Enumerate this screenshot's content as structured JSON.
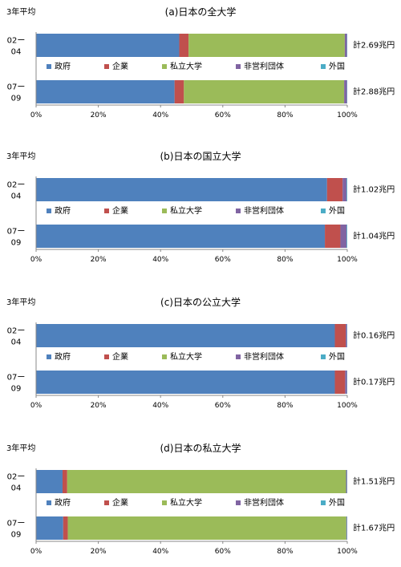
{
  "colors": {
    "政府": "#4f81bd",
    "企業": "#c0504d",
    "私立大学": "#9bbb59",
    "非営利団体": "#8064a2",
    "外国": "#4bacc6"
  },
  "chart_data": [
    {
      "type": "bar",
      "stacked": true,
      "orientation": "horizontal",
      "title": "(a)日本の全大学",
      "corner_label": "3年平均",
      "categories": [
        "02ー04",
        "07ー09"
      ],
      "xlim": [
        0,
        100
      ],
      "x_ticks": [
        "0%",
        "20%",
        "40%",
        "60%",
        "80%",
        "100%"
      ],
      "legend": [
        "政府",
        "企業",
        "私立大学",
        "非営利団体",
        "外国"
      ],
      "series": [
        {
          "name": "政府",
          "values": [
            46,
            44.5
          ]
        },
        {
          "name": "企業",
          "values": [
            3,
            3
          ]
        },
        {
          "name": "私立大学",
          "values": [
            50.2,
            51.5
          ]
        },
        {
          "name": "非営利団体",
          "values": [
            0.7,
            0.9
          ]
        },
        {
          "name": "外国",
          "values": [
            0.1,
            0.1
          ]
        }
      ],
      "totals": [
        "計2.69兆円",
        "計2.88兆円"
      ]
    },
    {
      "type": "bar",
      "stacked": true,
      "orientation": "horizontal",
      "title": "(b)日本の国立大学",
      "corner_label": "3年平均",
      "categories": [
        "02ー04",
        "07ー09"
      ],
      "xlim": [
        0,
        100
      ],
      "x_ticks": [
        "0%",
        "20%",
        "40%",
        "60%",
        "80%",
        "100%"
      ],
      "legend": [
        "政府",
        "企業",
        "私立大学",
        "非営利団体",
        "外国"
      ],
      "series": [
        {
          "name": "政府",
          "values": [
            93.5,
            92.8
          ]
        },
        {
          "name": "企業",
          "values": [
            5,
            5
          ]
        },
        {
          "name": "私立大学",
          "values": [
            0,
            0
          ]
        },
        {
          "name": "非営利団体",
          "values": [
            1.3,
            2
          ]
        },
        {
          "name": "外国",
          "values": [
            0.2,
            0.2
          ]
        }
      ],
      "totals": [
        "計1.02兆円",
        "計1.04兆円"
      ]
    },
    {
      "type": "bar",
      "stacked": true,
      "orientation": "horizontal",
      "title": "(c)日本の公立大学",
      "corner_label": "3年平均",
      "categories": [
        "02ー04",
        "07ー09"
      ],
      "xlim": [
        0,
        100
      ],
      "x_ticks": [
        "0%",
        "20%",
        "40%",
        "60%",
        "80%",
        "100%"
      ],
      "legend": [
        "政府",
        "企業",
        "私立大学",
        "非営利団体",
        "外国"
      ],
      "series": [
        {
          "name": "政府",
          "values": [
            96,
            96
          ]
        },
        {
          "name": "企業",
          "values": [
            3.5,
            3.3
          ]
        },
        {
          "name": "私立大学",
          "values": [
            0,
            0
          ]
        },
        {
          "name": "非営利団体",
          "values": [
            0.4,
            0.6
          ]
        },
        {
          "name": "外国",
          "values": [
            0.1,
            0.1
          ]
        }
      ],
      "totals": [
        "計0.16兆円",
        "計0.17兆円"
      ]
    },
    {
      "type": "bar",
      "stacked": true,
      "orientation": "horizontal",
      "title": "(d)日本の私立大学",
      "corner_label": "3年平均",
      "categories": [
        "02ー04",
        "07ー09"
      ],
      "xlim": [
        0,
        100
      ],
      "x_ticks": [
        "0%",
        "20%",
        "40%",
        "60%",
        "80%",
        "100%"
      ],
      "legend": [
        "政府",
        "企業",
        "私立大学",
        "非営利団体",
        "外国"
      ],
      "series": [
        {
          "name": "政府",
          "values": [
            8.5,
            8.7
          ]
        },
        {
          "name": "企業",
          "values": [
            1.5,
            1.5
          ]
        },
        {
          "name": "私立大学",
          "values": [
            89.6,
            89.5
          ]
        },
        {
          "name": "非営利団体",
          "values": [
            0.3,
            0.2
          ]
        },
        {
          "name": "外国",
          "values": [
            0.1,
            0.1
          ]
        }
      ],
      "totals": [
        "計1.51兆円",
        "計1.67兆円"
      ]
    }
  ]
}
